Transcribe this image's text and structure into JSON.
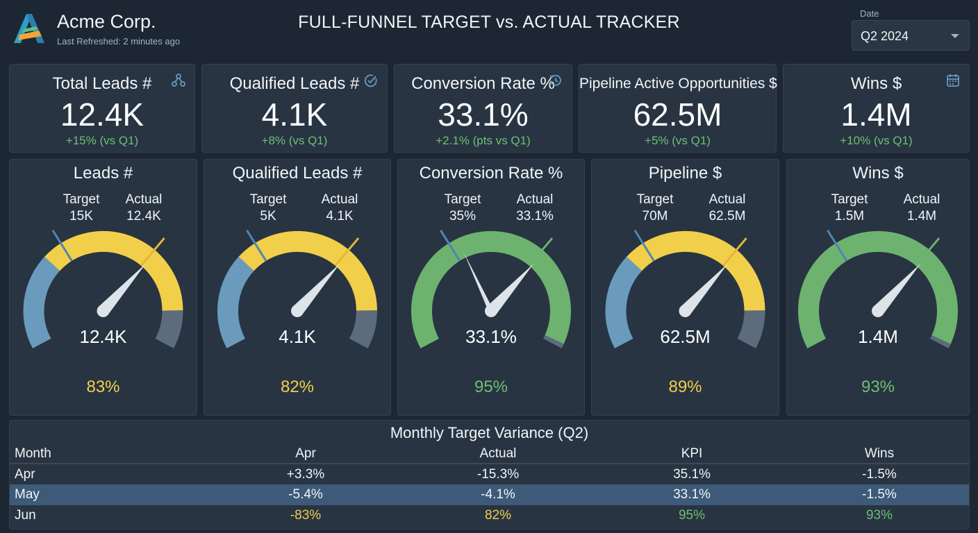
{
  "header": {
    "brand": "Acme Corp.",
    "refreshed": "Last Refreshed: 2 minutes ago",
    "title": "FULL-FUNNEL TARGET vs. ACTUAL TRACKER",
    "date_label": "Date",
    "date_value": "Q2 2024"
  },
  "kpis": [
    {
      "label": "Total Leads #",
      "value": "12.4K",
      "delta": "+15% (vs Q1)",
      "icon": "network-icon"
    },
    {
      "label": "Qualified Leads #",
      "value": "4.1K",
      "delta": "+8% (vs Q1)",
      "icon": "check-circle-icon"
    },
    {
      "label": "Conversion Rate %",
      "value": "33.1%",
      "delta": "+2.1% (pts vs Q1)",
      "icon": "history-icon"
    },
    {
      "label": "Pipeline Active Opportunities $",
      "value": "62.5M",
      "delta": "+5% (vs Q1)",
      "icon": ""
    },
    {
      "label": "Wins $",
      "value": "1.4M",
      "delta": "+10% (vs Q1)",
      "icon": "calendar-icon"
    }
  ],
  "gauges": [
    {
      "title": "Leads #",
      "target_label": "Target",
      "target": "15K",
      "actual_label": "Actual",
      "actual": "12.4K",
      "value": "12.4K",
      "pct": "83%",
      "fraction": 0.83,
      "status": "yellow"
    },
    {
      "title": "Qualified Leads #",
      "target_label": "Target",
      "target": "5K",
      "actual_label": "Actual",
      "actual": "4.1K",
      "value": "4.1K",
      "pct": "82%",
      "fraction": 0.82,
      "status": "yellow"
    },
    {
      "title": "Conversion Rate %",
      "target_label": "Target",
      "target": "35%",
      "actual_label": "Actual",
      "actual": "33.1%",
      "value": "33.1%",
      "pct": "95%",
      "fraction": 0.95,
      "status": "green"
    },
    {
      "title": "Pipeline $",
      "target_label": "Target",
      "target": "70M",
      "actual_label": "Actual",
      "actual": "62.5M",
      "value": "62.5M",
      "pct": "89%",
      "fraction": 0.89,
      "status": "yellow"
    },
    {
      "title": "Wins $",
      "target_label": "Target",
      "target": "1.5M",
      "actual_label": "Actual",
      "actual": "1.4M",
      "value": "1.4M",
      "pct": "93%",
      "fraction": 0.93,
      "status": "green"
    }
  ],
  "table": {
    "title": "Monthly Target Variance (Q2)",
    "headers": [
      "Month",
      "Apr",
      "Actual",
      "KPI",
      "Wins"
    ],
    "rows": [
      [
        "Apr",
        "+3.3%",
        "-15.3%",
        "35.1%",
        "-1.5%"
      ],
      [
        "May",
        "-5.4%",
        "-4.1%",
        "33.1%",
        "-1.5%"
      ],
      [
        "Jun",
        "-83%",
        "82%",
        "95%",
        "93%"
      ]
    ]
  },
  "colors": {
    "background": "#1d2733",
    "card": "#283442",
    "blue_zone": "#6a9bbd",
    "yellow_zone": "#f2cf4a",
    "green_zone": "#6db36f",
    "grey_zone": "#5d6c7c",
    "positive": "#6fbf73",
    "highlight_row": "#3d5a78"
  }
}
